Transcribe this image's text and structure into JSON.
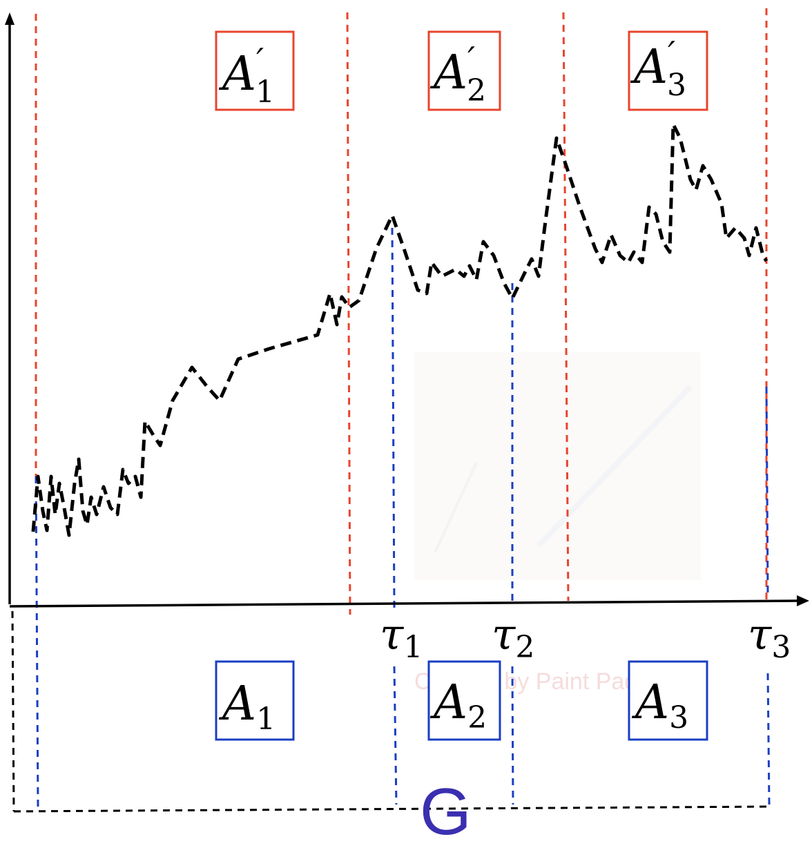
{
  "top_boxes": [
    {
      "base": "A",
      "prime": "′",
      "sub": "1"
    },
    {
      "base": "A",
      "prime": "′",
      "sub": "2"
    },
    {
      "base": "A",
      "prime": "′",
      "sub": "3"
    }
  ],
  "bottom_boxes": [
    {
      "base": "A",
      "sub": "1"
    },
    {
      "base": "A",
      "sub": "2"
    },
    {
      "base": "A",
      "sub": "3"
    }
  ],
  "tau_labels": [
    {
      "base": "τ",
      "sub": "1"
    },
    {
      "base": "τ",
      "sub": "2"
    },
    {
      "base": "τ",
      "sub": "3"
    }
  ],
  "group_label": "G",
  "watermark": "Created by Paint Pad Lite",
  "colors": {
    "red": "#e8442e",
    "blue": "#1a3ec2",
    "black": "#000000",
    "group_label": "#3a2fb0",
    "watermark": "#f6dcdc"
  }
}
